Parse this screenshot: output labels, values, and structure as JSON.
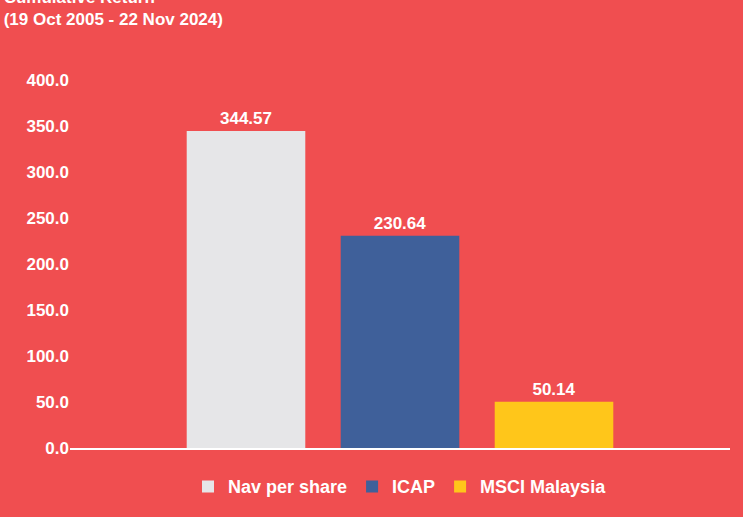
{
  "chart_data": {
    "type": "bar",
    "title": "Cumulative Return",
    "subtitle": "(19 Oct 2005 - 22 Nov 2024)",
    "categories": [
      null
    ],
    "series": [
      {
        "name": "Nav per share",
        "color": "#e6e6e8",
        "values": [
          344.57
        ]
      },
      {
        "name": "ICAP",
        "color": "#3f609a",
        "values": [
          230.64
        ]
      },
      {
        "name": "MSCI Malaysia",
        "color": "#ffc61a",
        "values": [
          50.14
        ]
      }
    ],
    "ylim": [
      0,
      400
    ],
    "yticks": [
      {
        "value": 0,
        "label": "0.0"
      },
      {
        "value": 50,
        "label": "50.0"
      },
      {
        "value": 100,
        "label": "100.0"
      },
      {
        "value": 150,
        "label": "150.0"
      },
      {
        "value": 200,
        "label": "200.0"
      },
      {
        "value": 250,
        "label": "250.0"
      },
      {
        "value": 300,
        "label": "300.0"
      },
      {
        "value": 350,
        "label": "350.0"
      },
      {
        "value": 400,
        "label": "400.0"
      }
    ],
    "grid": false,
    "legend": "bottom",
    "data_labels": true,
    "tick_labels": "y"
  }
}
